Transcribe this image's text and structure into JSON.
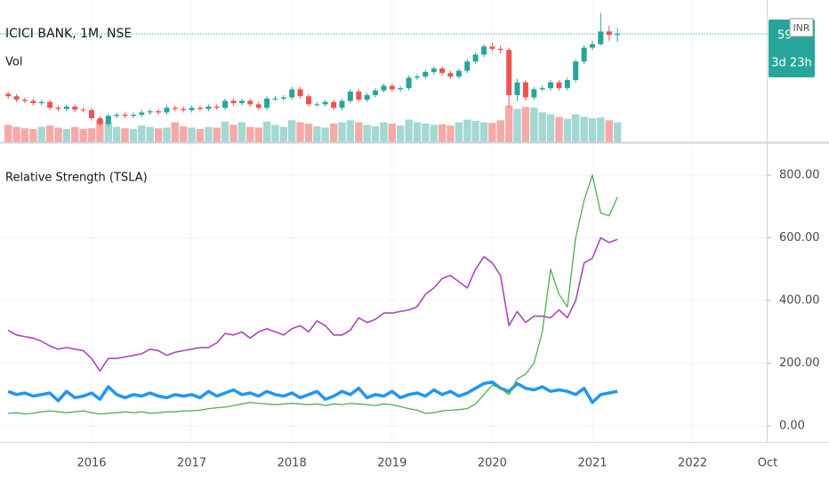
{
  "chart_data": {
    "type": "candlestick",
    "title": "ICICI BANK, 1M, NSE",
    "currency": "INR",
    "price_tag_label": "59",
    "countdown": "3d 23h",
    "up_color": "#26a69a",
    "down_color": "#ef5350",
    "ylim": [
      121,
      736
    ],
    "xlim": [
      2015.1,
      2022.85
    ],
    "xticks": [
      2016,
      2017,
      2018,
      2019,
      2020,
      2021,
      2022,
      {
        "value": 2022.75,
        "label": "Oct"
      }
    ],
    "grid": true,
    "x": [
      2015.167,
      2015.25,
      2015.333,
      2015.417,
      2015.5,
      2015.583,
      2015.667,
      2015.75,
      2015.833,
      2015.917,
      2016.0,
      2016.083,
      2016.167,
      2016.25,
      2016.333,
      2016.417,
      2016.5,
      2016.583,
      2016.667,
      2016.75,
      2016.833,
      2016.917,
      2017.0,
      2017.083,
      2017.167,
      2017.25,
      2017.333,
      2017.417,
      2017.5,
      2017.583,
      2017.667,
      2017.75,
      2017.833,
      2017.917,
      2018.0,
      2018.083,
      2018.167,
      2018.25,
      2018.333,
      2018.417,
      2018.5,
      2018.583,
      2018.667,
      2018.75,
      2018.833,
      2018.917,
      2019.0,
      2019.083,
      2019.167,
      2019.25,
      2019.333,
      2019.417,
      2019.5,
      2019.583,
      2019.667,
      2019.75,
      2019.833,
      2019.917,
      2020.0,
      2020.083,
      2020.167,
      2020.25,
      2020.333,
      2020.417,
      2020.5,
      2020.583,
      2020.667,
      2020.75,
      2020.833,
      2020.917,
      2021.0,
      2021.083,
      2021.167,
      2021.25
    ],
    "open": [
      330,
      320,
      305,
      300,
      290,
      295,
      270,
      265,
      275,
      262,
      260,
      225,
      200,
      235,
      240,
      235,
      240,
      250,
      255,
      250,
      270,
      265,
      260,
      270,
      265,
      275,
      270,
      300,
      290,
      300,
      285,
      270,
      310,
      310,
      315,
      350,
      320,
      285,
      285,
      295,
      270,
      300,
      340,
      305,
      325,
      345,
      365,
      350,
      355,
      400,
      405,
      425,
      440,
      420,
      405,
      430,
      470,
      500,
      535,
      525,
      520,
      325,
      380,
      315,
      350,
      355,
      380,
      355,
      390,
      470,
      530,
      545,
      600,
      585
    ],
    "high": [
      340,
      330,
      315,
      310,
      305,
      305,
      280,
      285,
      285,
      272,
      270,
      235,
      245,
      250,
      250,
      250,
      260,
      265,
      265,
      280,
      280,
      275,
      280,
      280,
      285,
      285,
      310,
      310,
      310,
      310,
      295,
      320,
      320,
      325,
      360,
      360,
      330,
      295,
      305,
      305,
      310,
      350,
      350,
      335,
      355,
      375,
      375,
      365,
      410,
      415,
      435,
      450,
      450,
      430,
      440,
      480,
      510,
      545,
      550,
      540,
      530,
      395,
      390,
      360,
      365,
      390,
      390,
      400,
      480,
      540,
      560,
      680,
      625,
      615
    ],
    "low": [
      310,
      295,
      290,
      280,
      280,
      260,
      255,
      255,
      252,
      250,
      215,
      190,
      190,
      225,
      225,
      225,
      230,
      240,
      240,
      240,
      255,
      250,
      250,
      255,
      255,
      260,
      260,
      280,
      280,
      275,
      260,
      260,
      300,
      300,
      305,
      310,
      275,
      275,
      275,
      260,
      260,
      290,
      295,
      295,
      315,
      335,
      340,
      340,
      345,
      390,
      395,
      415,
      410,
      395,
      395,
      420,
      460,
      490,
      515,
      505,
      270,
      300,
      300,
      305,
      340,
      345,
      345,
      345,
      380,
      460,
      520,
      540,
      560,
      555
    ],
    "close": [
      320,
      305,
      300,
      290,
      295,
      270,
      265,
      275,
      262,
      260,
      225,
      200,
      235,
      240,
      235,
      240,
      250,
      255,
      250,
      270,
      265,
      260,
      270,
      265,
      275,
      270,
      300,
      290,
      300,
      285,
      270,
      310,
      310,
      315,
      350,
      320,
      285,
      285,
      295,
      270,
      300,
      340,
      305,
      325,
      345,
      365,
      350,
      355,
      400,
      405,
      425,
      440,
      420,
      405,
      430,
      470,
      500,
      535,
      525,
      520,
      325,
      380,
      315,
      350,
      355,
      380,
      355,
      390,
      470,
      530,
      545,
      600,
      585,
      590
    ],
    "volume": {
      "label": "Vol",
      "ylim": [
        0,
        600
      ],
      "up_color": "#a4d8d2",
      "down_color": "#f7a9a7",
      "values": [
        260,
        230,
        210,
        200,
        230,
        250,
        220,
        200,
        230,
        200,
        210,
        330,
        300,
        230,
        210,
        200,
        250,
        230,
        210,
        220,
        300,
        240,
        220,
        200,
        230,
        220,
        310,
        260,
        300,
        230,
        220,
        310,
        260,
        230,
        330,
        300,
        280,
        240,
        220,
        280,
        300,
        330,
        300,
        260,
        240,
        300,
        280,
        250,
        340,
        300,
        280,
        260,
        270,
        250,
        300,
        340,
        320,
        300,
        290,
        330,
        550,
        500,
        530,
        520,
        450,
        420,
        380,
        350,
        420,
        380,
        360,
        370,
        330,
        300
      ]
    },
    "indicator": {
      "type": "line",
      "title": "Relative Strength (TSLA)",
      "ylim": [
        -51,
        905
      ],
      "yticks": [
        {
          "value": 0,
          "label": "0.00"
        },
        {
          "value": 200,
          "label": "200.00"
        },
        {
          "value": 400,
          "label": "400.00"
        },
        {
          "value": 600,
          "label": "600.00"
        },
        {
          "value": 800,
          "label": "800.00"
        }
      ],
      "series": [
        {
          "color": "#ab47bc",
          "width": 1.6,
          "values": [
            305,
            290,
            285,
            280,
            270,
            255,
            245,
            250,
            245,
            240,
            215,
            175,
            215,
            215,
            220,
            225,
            230,
            245,
            240,
            225,
            235,
            240,
            245,
            250,
            250,
            265,
            295,
            290,
            300,
            280,
            300,
            310,
            300,
            290,
            310,
            320,
            300,
            335,
            320,
            290,
            290,
            305,
            345,
            330,
            340,
            360,
            360,
            365,
            370,
            380,
            420,
            440,
            470,
            480,
            460,
            440,
            500,
            540,
            520,
            480,
            320,
            365,
            330,
            350,
            350,
            345,
            370,
            345,
            400,
            520,
            535,
            600,
            585,
            595
          ]
        },
        {
          "color": "#2196f3",
          "width": 3.5,
          "values": [
            110,
            100,
            105,
            95,
            100,
            105,
            80,
            110,
            90,
            95,
            105,
            85,
            125,
            100,
            90,
            100,
            95,
            105,
            95,
            90,
            100,
            95,
            100,
            90,
            110,
            95,
            105,
            115,
            100,
            105,
            95,
            110,
            100,
            95,
            105,
            90,
            100,
            110,
            85,
            95,
            110,
            100,
            120,
            90,
            100,
            95,
            110,
            90,
            100,
            105,
            95,
            115,
            100,
            110,
            95,
            105,
            120,
            135,
            140,
            120,
            110,
            135,
            120,
            115,
            125,
            110,
            115,
            110,
            100,
            120,
            75,
            100,
            105,
            110
          ]
        },
        {
          "color": "#4caf50",
          "width": 1.3,
          "values": [
            40,
            42,
            38,
            40,
            45,
            48,
            45,
            42,
            45,
            48,
            42,
            38,
            40,
            42,
            45,
            42,
            45,
            40,
            42,
            45,
            45,
            48,
            48,
            50,
            55,
            58,
            60,
            65,
            70,
            75,
            72,
            70,
            68,
            70,
            72,
            70,
            68,
            70,
            65,
            70,
            68,
            72,
            70,
            68,
            65,
            70,
            68,
            62,
            55,
            50,
            40,
            42,
            48,
            50,
            52,
            55,
            70,
            100,
            130,
            120,
            100,
            150,
            165,
            200,
            300,
            500,
            420,
            380,
            600,
            720,
            800,
            680,
            670,
            730
          ]
        }
      ]
    }
  }
}
